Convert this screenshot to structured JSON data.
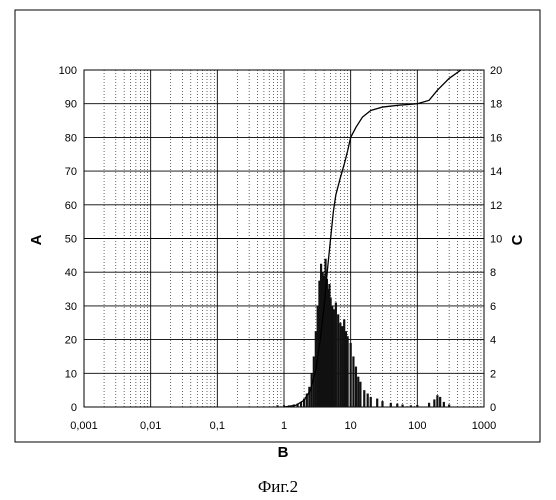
{
  "caption": "Фиг.2",
  "chart_data": {
    "type": "bar",
    "title": "",
    "xlabel": "B",
    "ylabel_left": "A",
    "ylabel_right": "C",
    "x_scale": "log",
    "xlim": [
      0.001,
      1000
    ],
    "ylim_left": [
      0,
      100
    ],
    "ylim_right": [
      0,
      20
    ],
    "grid": true,
    "legend": "none",
    "x_ticks": [
      "0,001",
      "0,01",
      "0,1",
      "1",
      "10",
      "100",
      "1000"
    ],
    "y_left_ticks": [
      "0",
      "10",
      "20",
      "30",
      "40",
      "50",
      "60",
      "70",
      "80",
      "90",
      "100"
    ],
    "y_right_ticks": [
      "0",
      "2",
      "4",
      "6",
      "8",
      "10",
      "12",
      "14",
      "16",
      "18",
      "20"
    ],
    "series": [
      {
        "axis": "left",
        "kind": "line",
        "x": [
          1.0,
          1.5,
          2.0,
          2.5,
          3.0,
          3.5,
          4.0,
          4.5,
          5.0,
          5.5,
          6.0,
          7.0,
          8.0,
          9.0,
          10.0,
          12.0,
          15.0,
          20.0,
          30.0,
          50.0,
          100.0,
          150.0,
          200.0,
          300.0,
          450.0
        ],
        "y": [
          0,
          0.5,
          2,
          5,
          11,
          20,
          30,
          41,
          50,
          58,
          63,
          68,
          72,
          76,
          80,
          83,
          86,
          88,
          89,
          89.5,
          90,
          91,
          94,
          97.5,
          100
        ]
      },
      {
        "axis": "right",
        "kind": "bars",
        "x": [
          0.8,
          1.0,
          1.2,
          1.4,
          1.6,
          1.8,
          2.0,
          2.2,
          2.4,
          2.6,
          2.8,
          3.0,
          3.2,
          3.4,
          3.6,
          3.8,
          4.0,
          4.2,
          4.4,
          4.6,
          4.8,
          5.0,
          5.3,
          5.6,
          6.0,
          6.5,
          7.0,
          7.5,
          8.0,
          8.5,
          9.0,
          10.0,
          11.0,
          12.0,
          13.0,
          14.0,
          16.0,
          18.0,
          20.0,
          25.0,
          30.0,
          40.0,
          50.0,
          60.0,
          80.0,
          100.0,
          150.0,
          180.0,
          200.0,
          220.0,
          250.0,
          300.0
        ],
        "y": [
          0.1,
          0.1,
          0.1,
          0.15,
          0.2,
          0.3,
          0.5,
          0.8,
          1.2,
          2.0,
          3.0,
          4.5,
          6.0,
          7.5,
          8.5,
          8.0,
          7.8,
          8.8,
          7.6,
          7.0,
          7.3,
          6.5,
          6.0,
          5.8,
          6.2,
          5.5,
          5.0,
          4.8,
          5.2,
          4.5,
          4.2,
          3.8,
          3.0,
          2.4,
          1.8,
          1.5,
          1.0,
          0.8,
          0.6,
          0.5,
          0.35,
          0.25,
          0.2,
          0.15,
          0.1,
          0.12,
          0.25,
          0.45,
          0.7,
          0.6,
          0.3,
          0.15
        ]
      }
    ]
  }
}
